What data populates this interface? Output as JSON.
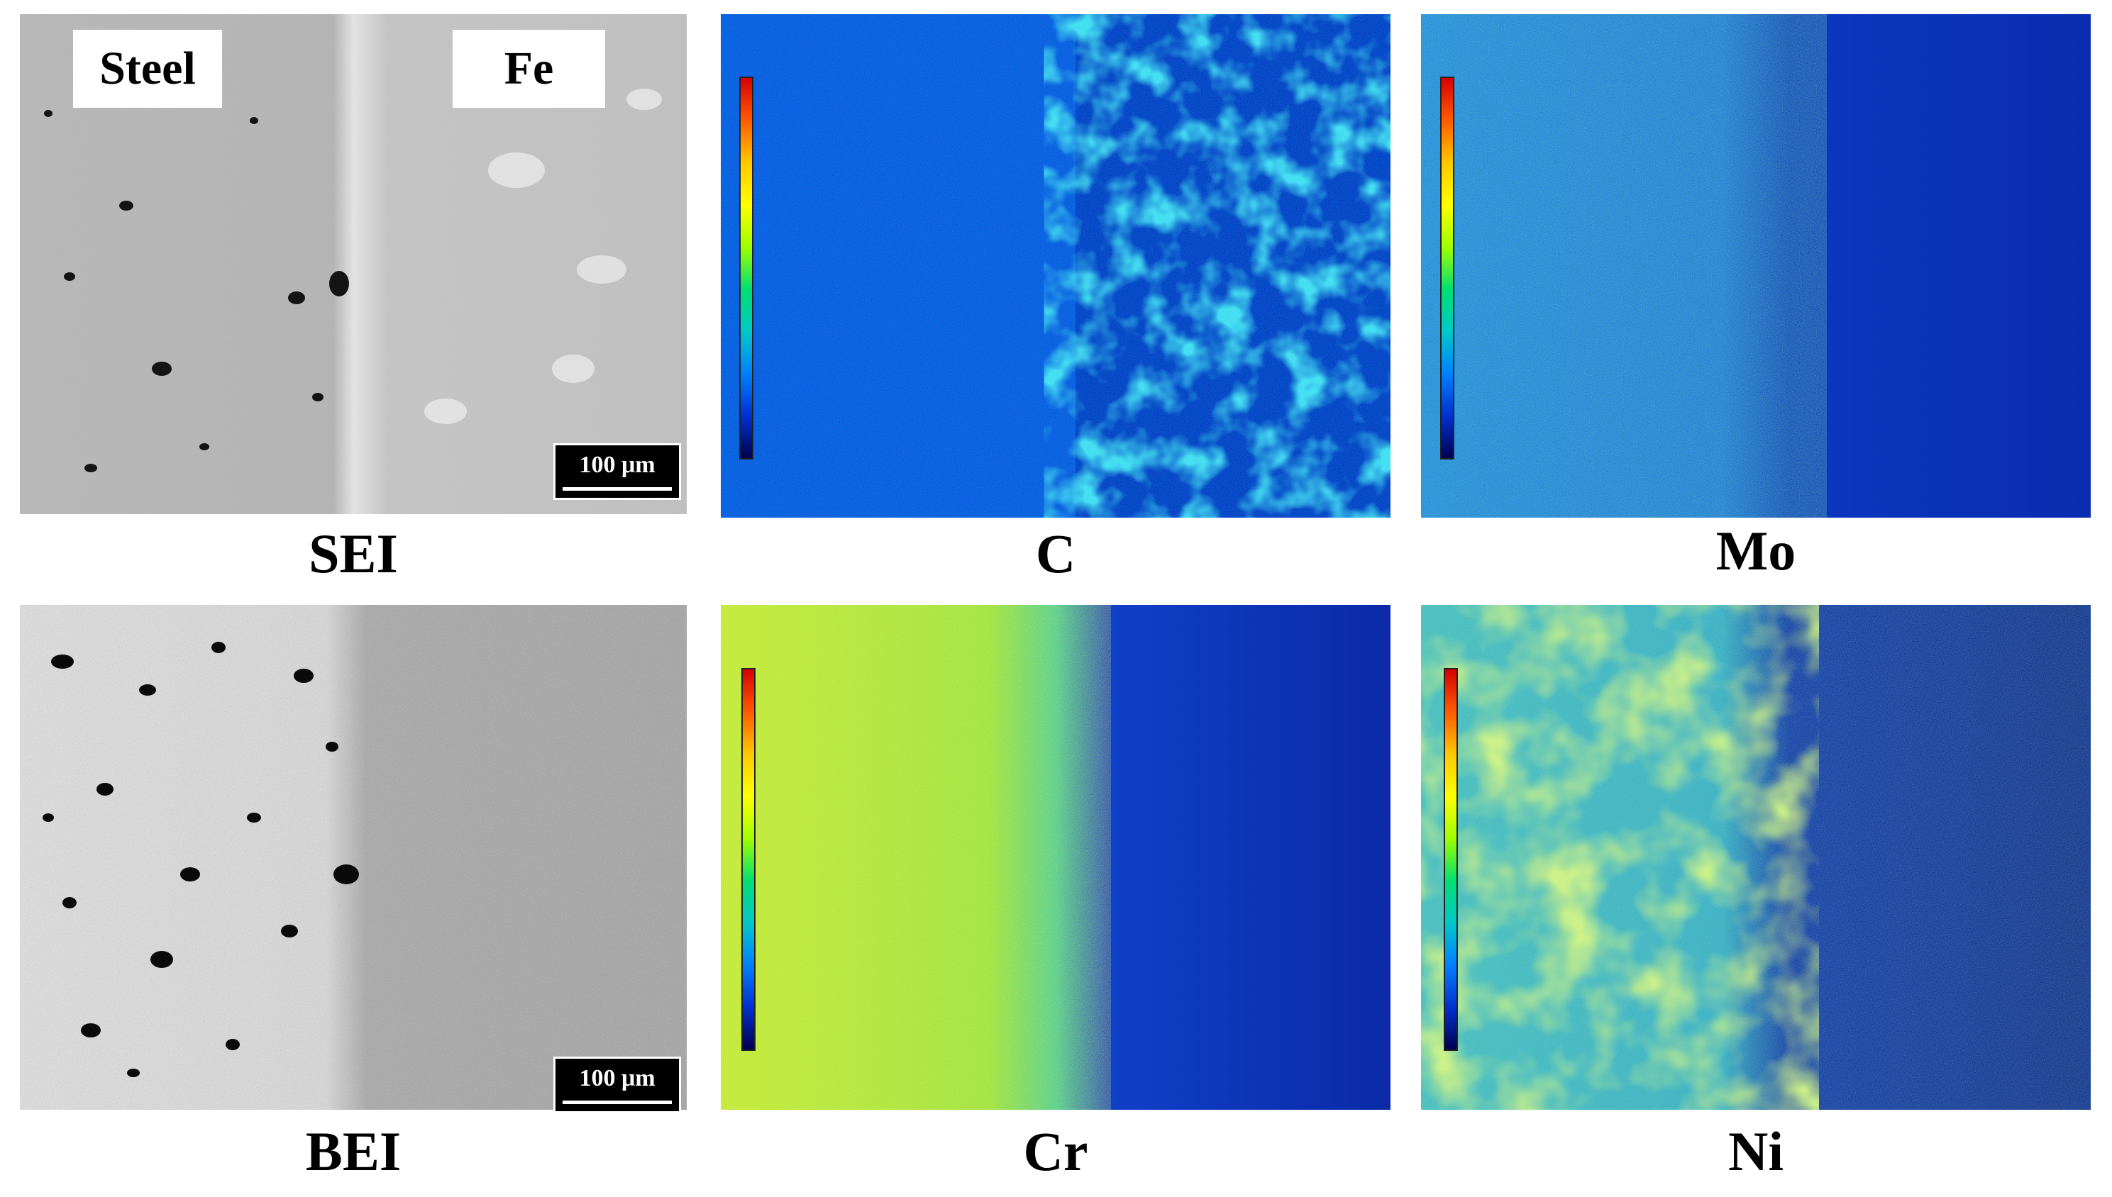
{
  "figure": {
    "region_labels": {
      "steel": "Steel",
      "fe": "Fe"
    },
    "scale_bars": {
      "top": "100 μm",
      "bottom": "100 μm"
    },
    "captions": {
      "sei": "SEI",
      "c": "C",
      "mo": "Mo",
      "bei": "BEI",
      "cr": "Cr",
      "ni": "Ni"
    },
    "colorbar_colors": [
      "#d60000",
      "#ff5a00",
      "#ffc800",
      "#a0ff00",
      "#00e070",
      "#00c8c8",
      "#0080ff",
      "#0030d0",
      "#000050"
    ]
  }
}
